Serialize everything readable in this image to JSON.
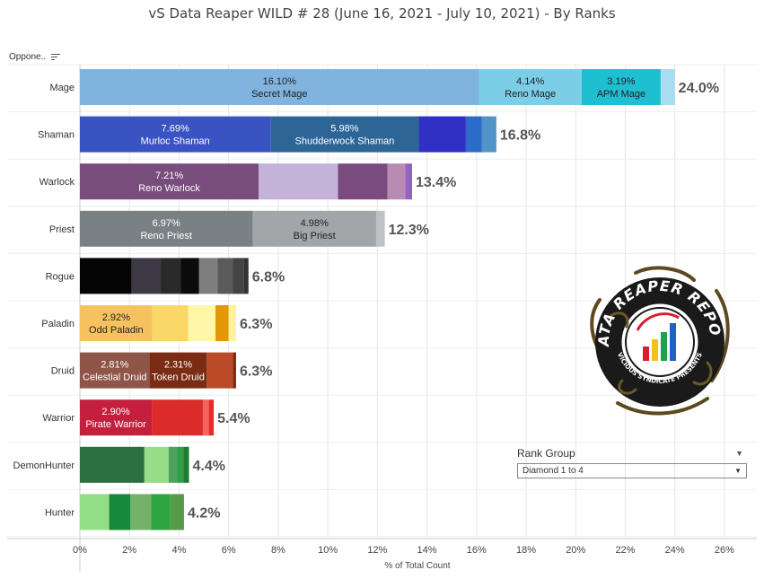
{
  "title": "vS Data Reaper WILD # 28 (June 16, 2021 - July 10, 2021) - By Ranks",
  "column_header": "Oppone..",
  "rank_filter": {
    "label": "Rank Group",
    "selected": "Diamond 1 to 4"
  },
  "colors": {
    "axis": "#cccccc",
    "grid": "#e6e6e6"
  },
  "chart_data": {
    "type": "bar",
    "orientation": "horizontal",
    "stacked": true,
    "xlabel": "% of Total Count",
    "xlim": [
      0,
      26.8
    ],
    "xticks": [
      "0%",
      "2%",
      "4%",
      "6%",
      "8%",
      "10%",
      "12%",
      "14%",
      "16%",
      "18%",
      "20%",
      "22%",
      "24%",
      "26%"
    ],
    "xtick_values": [
      0,
      2,
      4,
      6,
      8,
      10,
      12,
      14,
      16,
      18,
      20,
      22,
      24,
      26
    ],
    "categories": [
      "Mage",
      "Shaman",
      "Warlock",
      "Priest",
      "Rogue",
      "Paladin",
      "Druid",
      "Warrior",
      "DemonHunter",
      "Hunter"
    ],
    "totals": [
      "24.0%",
      "16.8%",
      "13.4%",
      "12.3%",
      "6.8%",
      "6.3%",
      "6.3%",
      "5.4%",
      "4.4%",
      "4.2%"
    ],
    "rows": [
      {
        "segments": [
          {
            "value": 16.1,
            "color": "#80b4de",
            "pct": "16.10%",
            "name": "Secret Mage",
            "light": false
          },
          {
            "value": 4.14,
            "color": "#7ccde7",
            "pct": "4.14%",
            "name": "Reno Mage",
            "light": false
          },
          {
            "value": 3.19,
            "color": "#1fbfd2",
            "pct": "3.19%",
            "name": "APM Mage",
            "light": false
          },
          {
            "value": 0.57,
            "color": "#a8dcf0"
          }
        ]
      },
      {
        "segments": [
          {
            "value": 7.69,
            "color": "#3a53c2",
            "pct": "7.69%",
            "name": "Murloc Shaman",
            "light": true
          },
          {
            "value": 5.98,
            "color": "#2e6597",
            "pct": "5.98%",
            "name": "Shudderwock Shaman",
            "light": true
          },
          {
            "value": 1.9,
            "color": "#3030c4"
          },
          {
            "value": 0.65,
            "color": "#2b6bc9"
          },
          {
            "value": 0.58,
            "color": "#5294c8"
          }
        ]
      },
      {
        "segments": [
          {
            "value": 7.21,
            "color": "#784d7b",
            "pct": "7.21%",
            "name": "Reno Warlock",
            "light": true
          },
          {
            "value": 3.2,
            "color": "#c4b2d8"
          },
          {
            "value": 2.0,
            "color": "#7a4c7e"
          },
          {
            "value": 0.72,
            "color": "#b78bb2"
          },
          {
            "value": 0.27,
            "color": "#9263c4"
          }
        ]
      },
      {
        "segments": [
          {
            "value": 6.97,
            "color": "#7a8185",
            "pct": "6.97%",
            "name": "Reno Priest",
            "light": true
          },
          {
            "value": 4.98,
            "color": "#a3a6a8",
            "pct": "4.98%",
            "name": "Big Priest",
            "light": false
          },
          {
            "value": 0.35,
            "color": "#bfc2c4"
          }
        ]
      },
      {
        "segments": [
          {
            "value": 2.08,
            "color": "#050505"
          },
          {
            "value": 1.18,
            "color": "#3d3944"
          },
          {
            "value": 0.8,
            "color": "#2a2a2a"
          },
          {
            "value": 0.75,
            "color": "#0b0b0b"
          },
          {
            "value": 0.75,
            "color": "#7e7e7e"
          },
          {
            "value": 0.6,
            "color": "#5a5a5a"
          },
          {
            "value": 0.44,
            "color": "#444444"
          },
          {
            "value": 0.2,
            "color": "#333333"
          }
        ]
      },
      {
        "segments": [
          {
            "value": 2.92,
            "color": "#f6c25f",
            "pct": "2.92%",
            "name": "Odd Paladin",
            "light": false
          },
          {
            "value": 1.45,
            "color": "#fbd768"
          },
          {
            "value": 1.1,
            "color": "#fff7a8"
          },
          {
            "value": 0.53,
            "color": "#e29806"
          },
          {
            "value": 0.3,
            "color": "#fff29a"
          }
        ]
      },
      {
        "segments": [
          {
            "value": 2.81,
            "color": "#8f5548",
            "pct": "2.81%",
            "name": "Celestial Druid",
            "light": true
          },
          {
            "value": 2.31,
            "color": "#7b2c14",
            "pct": "2.31%",
            "name": "Token Druid",
            "light": true
          },
          {
            "value": 1.05,
            "color": "#bb4b28"
          },
          {
            "value": 0.13,
            "color": "#8a2512"
          }
        ]
      },
      {
        "segments": [
          {
            "value": 2.9,
            "color": "#c4203d",
            "pct": "2.90%",
            "name": "Pirate Warrior",
            "light": true
          },
          {
            "value": 2.06,
            "color": "#dc2b2b"
          },
          {
            "value": 0.24,
            "color": "#f5635e"
          },
          {
            "value": 0.2,
            "color": "#e52b2b"
          }
        ]
      },
      {
        "segments": [
          {
            "value": 2.6,
            "color": "#2b6e3f"
          },
          {
            "value": 0.98,
            "color": "#97dd87"
          },
          {
            "value": 0.35,
            "color": "#4fa05e"
          },
          {
            "value": 0.25,
            "color": "#2f9e44"
          },
          {
            "value": 0.22,
            "color": "#1e7a34"
          }
        ]
      },
      {
        "segments": [
          {
            "value": 1.18,
            "color": "#93df86"
          },
          {
            "value": 0.86,
            "color": "#17893a"
          },
          {
            "value": 0.84,
            "color": "#74b26a"
          },
          {
            "value": 0.77,
            "color": "#2ea442"
          },
          {
            "value": 0.55,
            "color": "#579b4a"
          }
        ]
      }
    ]
  },
  "logo": {
    "text": "DATA REAPER REPORT",
    "subtitle": "VICIOUS SYNDICATE PRESENTS",
    "icon": "data-reaper-logo-icon"
  }
}
